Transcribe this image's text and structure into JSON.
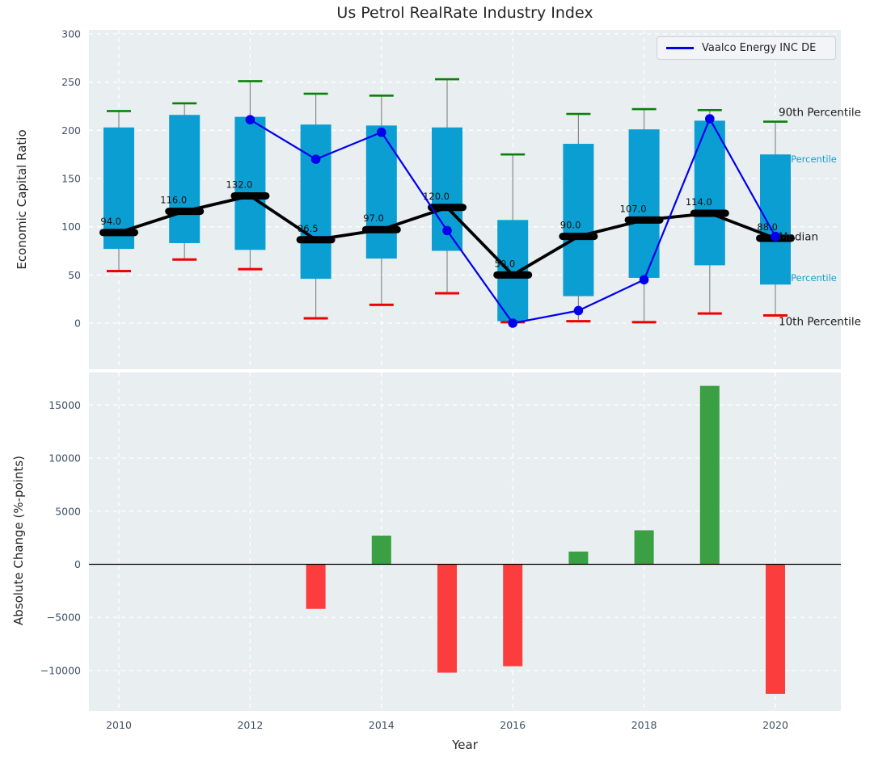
{
  "title": "Us Petrol RealRate Industry Index",
  "legend": {
    "label": "Vaalco Energy INC DE"
  },
  "colors": {
    "plot_bg": "#e9eef0",
    "grid": "#ffffff",
    "box": "#0a9ed2",
    "company_line": "#0000ee",
    "median": "#000000",
    "p90_cap": "#088008",
    "p10_cap": "#f00000",
    "bar_positive": "#3aa043",
    "bar_negative": "#fb3d3d",
    "tick": "#3d4e63",
    "text": "#262626",
    "annotation_cyan": "#149fd1",
    "whisker": "#8a8a8a"
  },
  "chart_data": [
    {
      "type": "box",
      "title": "Us Petrol RealRate Industry Index",
      "ylabel": "Economic Capital Ratio",
      "x": [
        2010,
        2011,
        2012,
        2013,
        2014,
        2015,
        2016,
        2017,
        2018,
        2019,
        2020
      ],
      "xticks": [
        2010,
        2012,
        2014,
        2016,
        2018,
        2020
      ],
      "yticks": [
        0,
        50,
        100,
        150,
        200,
        250,
        300
      ],
      "ylim": [
        -48,
        304
      ],
      "grid": true,
      "legend_entries": [
        "Vaalco Energy INC DE"
      ],
      "legend_position": "upper right",
      "percentiles": {
        "p90": [
          220,
          228,
          251,
          238,
          236,
          253,
          175,
          217,
          222,
          221,
          209
        ],
        "p75": [
          203,
          216,
          214,
          206,
          205,
          203,
          107,
          186,
          201,
          210,
          175
        ],
        "median": [
          94,
          116,
          132,
          86.5,
          97,
          120,
          50,
          90,
          107,
          114,
          88
        ],
        "p25": [
          77,
          83,
          76,
          46,
          67,
          75,
          2,
          28,
          47,
          60,
          40
        ],
        "p10": [
          54,
          66,
          56,
          5,
          19,
          31,
          1,
          2,
          1,
          10,
          8
        ]
      },
      "median_labels": [
        "94.0",
        "116.0",
        "132.0",
        "86.5",
        "97.0",
        "120.0",
        "50.0",
        "90.0",
        "107.0",
        "114.0",
        "88.0"
      ],
      "company_series": {
        "name": "Vaalco Energy INC DE",
        "x": [
          2012,
          2013,
          2014,
          2015,
          2016,
          2017,
          2018,
          2019,
          2020
        ],
        "values": [
          211,
          170,
          198,
          96,
          0,
          13,
          45,
          212,
          90
        ]
      },
      "annotations": [
        {
          "text": "90th Percentile",
          "value": 219,
          "style": "black"
        },
        {
          "text": "75th Percentile",
          "value": 170,
          "style": "cyan"
        },
        {
          "text": "Median",
          "value": 90,
          "style": "black"
        },
        {
          "text": "25th Percentile",
          "value": 47,
          "style": "cyan"
        },
        {
          "text": "10th Percentile",
          "value": 2,
          "style": "black"
        }
      ]
    },
    {
      "type": "bar",
      "ylabel": "Absolute Change (%-points)",
      "xlabel": "Year",
      "categories": [
        2010,
        2011,
        2012,
        2013,
        2014,
        2015,
        2016,
        2017,
        2018,
        2019,
        2020
      ],
      "values": [
        null,
        null,
        null,
        -4200,
        2700,
        -10200,
        -9600,
        1200,
        3200,
        16800,
        -12200
      ],
      "yticks": [
        -10000,
        -5000,
        0,
        5000,
        10000,
        15000
      ],
      "ylim": [
        -13900,
        18300
      ],
      "xticks": [
        2010,
        2012,
        2014,
        2016,
        2018,
        2020
      ],
      "grid": true,
      "zero_line": true
    }
  ]
}
